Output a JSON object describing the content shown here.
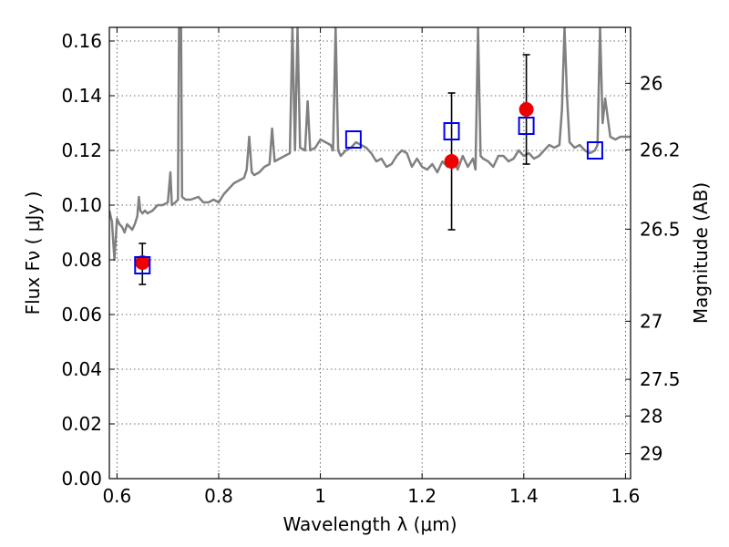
{
  "chart_data": {
    "type": "scatter",
    "title": "",
    "xlabel": "Wavelength  λ (μm)",
    "ylabel": "Flux  Fν  ( μJy )",
    "y2label": "Magnitude (AB)",
    "xlim": [
      0.585,
      1.61
    ],
    "ylim": [
      0.0,
      0.165
    ],
    "grid": true,
    "legend": "none",
    "x_ticks": [
      0.6,
      0.8,
      1.0,
      1.2,
      1.4,
      1.6
    ],
    "x_tick_labels": [
      "0.6",
      "0.8",
      "1",
      "1.2",
      "1.4",
      "1.6"
    ],
    "y_ticks": [
      0.0,
      0.02,
      0.04,
      0.06,
      0.08,
      0.1,
      0.12,
      0.14,
      0.16
    ],
    "y_tick_labels": [
      "0.00",
      "0.02",
      "0.04",
      "0.06",
      "0.08",
      "0.10",
      "0.12",
      "0.14",
      "0.16"
    ],
    "y2_ticks": [
      26,
      26.2,
      26.5,
      27,
      27.5,
      28,
      29
    ],
    "y2_tick_labels": [
      "26",
      "26.2",
      "26.5",
      "27",
      "27.5",
      "28",
      "29"
    ],
    "colors": {
      "model": "#808080",
      "observed": "#ee0000",
      "model_band": "#0000ee",
      "errorbar": "#000000"
    },
    "series": [
      {
        "kind": "line",
        "points": [
          [
            0.585,
            0.098
          ],
          [
            0.59,
            0.094
          ],
          [
            0.595,
            0.08
          ],
          [
            0.6,
            0.095
          ],
          [
            0.605,
            0.093
          ],
          [
            0.61,
            0.092
          ],
          [
            0.615,
            0.09
          ],
          [
            0.62,
            0.093
          ],
          [
            0.625,
            0.092
          ],
          [
            0.63,
            0.091
          ],
          [
            0.635,
            0.093
          ],
          [
            0.64,
            0.096
          ],
          [
            0.643,
            0.103
          ],
          [
            0.646,
            0.098
          ],
          [
            0.65,
            0.097
          ],
          [
            0.655,
            0.098
          ],
          [
            0.66,
            0.097
          ],
          [
            0.67,
            0.098
          ],
          [
            0.68,
            0.1
          ],
          [
            0.69,
            0.1
          ],
          [
            0.7,
            0.101
          ],
          [
            0.705,
            0.112
          ],
          [
            0.708,
            0.1
          ],
          [
            0.715,
            0.101
          ],
          [
            0.72,
            0.102
          ],
          [
            0.722,
            0.165
          ],
          [
            0.726,
            0.165
          ],
          [
            0.728,
            0.103
          ],
          [
            0.735,
            0.102
          ],
          [
            0.745,
            0.102
          ],
          [
            0.76,
            0.103
          ],
          [
            0.77,
            0.101
          ],
          [
            0.78,
            0.101
          ],
          [
            0.79,
            0.102
          ],
          [
            0.8,
            0.101
          ],
          [
            0.81,
            0.104
          ],
          [
            0.82,
            0.106
          ],
          [
            0.83,
            0.108
          ],
          [
            0.84,
            0.109
          ],
          [
            0.85,
            0.11
          ],
          [
            0.855,
            0.113
          ],
          [
            0.86,
            0.125
          ],
          [
            0.865,
            0.112
          ],
          [
            0.87,
            0.111
          ],
          [
            0.88,
            0.112
          ],
          [
            0.89,
            0.114
          ],
          [
            0.9,
            0.115
          ],
          [
            0.905,
            0.128
          ],
          [
            0.91,
            0.116
          ],
          [
            0.92,
            0.117
          ],
          [
            0.93,
            0.118
          ],
          [
            0.94,
            0.119
          ],
          [
            0.945,
            0.165
          ],
          [
            0.95,
            0.12
          ],
          [
            0.955,
            0.165
          ],
          [
            0.96,
            0.121
          ],
          [
            0.97,
            0.12
          ],
          [
            0.975,
            0.138
          ],
          [
            0.98,
            0.12
          ],
          [
            0.99,
            0.121
          ],
          [
            1.0,
            0.124
          ],
          [
            1.01,
            0.123
          ],
          [
            1.02,
            0.122
          ],
          [
            1.025,
            0.12
          ],
          [
            1.03,
            0.165
          ],
          [
            1.035,
            0.12
          ],
          [
            1.04,
            0.118
          ],
          [
            1.05,
            0.12
          ],
          [
            1.06,
            0.121
          ],
          [
            1.07,
            0.123
          ],
          [
            1.08,
            0.122
          ],
          [
            1.09,
            0.121
          ],
          [
            1.1,
            0.119
          ],
          [
            1.11,
            0.116
          ],
          [
            1.12,
            0.117
          ],
          [
            1.13,
            0.114
          ],
          [
            1.14,
            0.115
          ],
          [
            1.15,
            0.118
          ],
          [
            1.16,
            0.12
          ],
          [
            1.17,
            0.119
          ],
          [
            1.18,
            0.114
          ],
          [
            1.19,
            0.117
          ],
          [
            1.2,
            0.114
          ],
          [
            1.21,
            0.113
          ],
          [
            1.22,
            0.115
          ],
          [
            1.23,
            0.112
          ],
          [
            1.24,
            0.116
          ],
          [
            1.25,
            0.114
          ],
          [
            1.26,
            0.117
          ],
          [
            1.27,
            0.113
          ],
          [
            1.28,
            0.118
          ],
          [
            1.29,
            0.114
          ],
          [
            1.3,
            0.117
          ],
          [
            1.305,
            0.113
          ],
          [
            1.31,
            0.165
          ],
          [
            1.315,
            0.118
          ],
          [
            1.32,
            0.117
          ],
          [
            1.33,
            0.116
          ],
          [
            1.34,
            0.114
          ],
          [
            1.35,
            0.118
          ],
          [
            1.36,
            0.118
          ],
          [
            1.37,
            0.116
          ],
          [
            1.38,
            0.117
          ],
          [
            1.39,
            0.12
          ],
          [
            1.4,
            0.118
          ],
          [
            1.41,
            0.119
          ],
          [
            1.42,
            0.117
          ],
          [
            1.43,
            0.118
          ],
          [
            1.44,
            0.12
          ],
          [
            1.45,
            0.122
          ],
          [
            1.46,
            0.121
          ],
          [
            1.47,
            0.122
          ],
          [
            1.475,
            0.135
          ],
          [
            1.48,
            0.165
          ],
          [
            1.485,
            0.14
          ],
          [
            1.49,
            0.123
          ],
          [
            1.5,
            0.121
          ],
          [
            1.51,
            0.122
          ],
          [
            1.52,
            0.12
          ],
          [
            1.53,
            0.119
          ],
          [
            1.54,
            0.12
          ],
          [
            1.545,
            0.122
          ],
          [
            1.55,
            0.165
          ],
          [
            1.555,
            0.13
          ],
          [
            1.56,
            0.139
          ],
          [
            1.565,
            0.132
          ],
          [
            1.57,
            0.125
          ],
          [
            1.58,
            0.124
          ],
          [
            1.59,
            0.125
          ],
          [
            1.6,
            0.125
          ],
          [
            1.61,
            0.125
          ]
        ]
      },
      {
        "kind": "observed",
        "points": [
          {
            "x": 0.65,
            "y": 0.079,
            "yerr_low": 0.071,
            "yerr_high": 0.086
          },
          {
            "x": 1.258,
            "y": 0.116,
            "yerr_low": 0.091,
            "yerr_high": 0.141
          },
          {
            "x": 1.405,
            "y": 0.135,
            "yerr_low": 0.115,
            "yerr_high": 0.155
          }
        ]
      },
      {
        "kind": "model-band",
        "points": [
          {
            "x": 0.65,
            "y": 0.078
          },
          {
            "x": 1.065,
            "y": 0.124
          },
          {
            "x": 1.258,
            "y": 0.127
          },
          {
            "x": 1.405,
            "y": 0.129
          },
          {
            "x": 1.54,
            "y": 0.12
          }
        ]
      }
    ]
  }
}
